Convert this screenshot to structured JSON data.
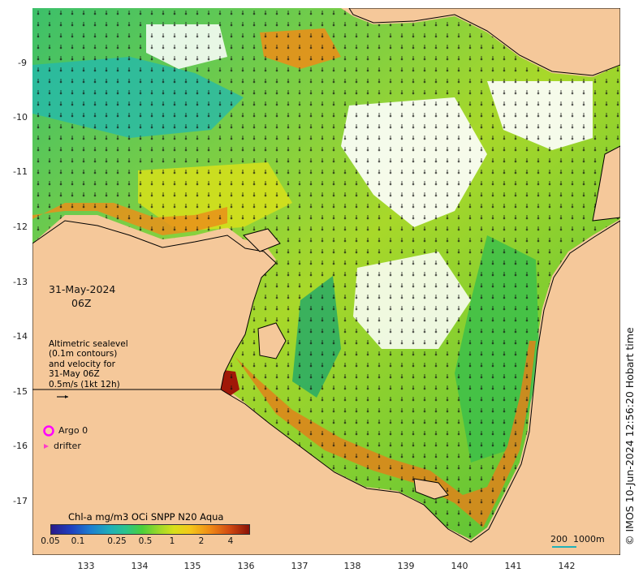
{
  "map": {
    "date": "31-May-2024",
    "time": "06Z",
    "legend_lines": [
      "Altimetric sealevel",
      "(0.1m contours)",
      "and velocity for",
      "31-May 06Z",
      "0.5m/s (1kt 12h)"
    ],
    "argo_label": "Argo 0",
    "drifter_label": "drifter",
    "argo_color": "#ff00ff",
    "drifter_color": "#ff3cc8",
    "land_color": "#f5c89a",
    "credit": "© IMOS 10-Jun-2024 12:56:20 Hobart time",
    "scale_text_1": "200",
    "scale_text_2": "1000m"
  },
  "axes": {
    "lat_ticks": [
      "-9",
      "-10",
      "-11",
      "-12",
      "-13",
      "-14",
      "-15",
      "-16",
      "-17"
    ],
    "lon_ticks": [
      "133",
      "134",
      "135",
      "136",
      "137",
      "138",
      "139",
      "140",
      "141",
      "142"
    ]
  },
  "colorbar": {
    "title": "Chl-a mg/m3 OCi SNPP N20 Aqua",
    "ticks": [
      "0.05",
      "0.1",
      "0.25",
      "0.5",
      "1",
      "2",
      "4"
    ]
  }
}
